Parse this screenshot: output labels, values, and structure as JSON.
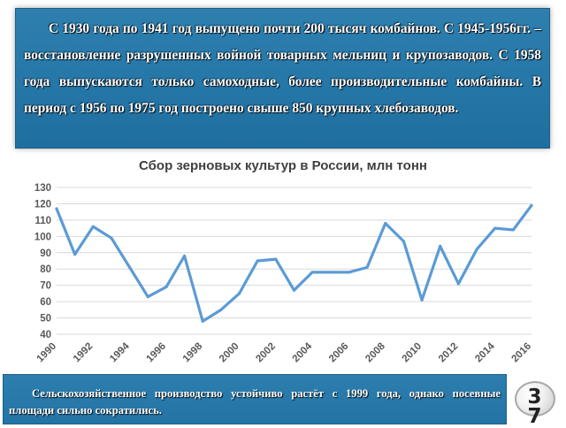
{
  "slide": {
    "top_text": "С 1930 года по 1941 год выпущено почти 200 тысяч комбайнов. С 1945-1956гг. – восстановление разрушенных войной товарных мельниц и крупозаводов. С 1958 года выпускаются только самоходные, более производительные комбайны. В период с 1956 по 1975 год построено свыше 850 крупных хлебозаводов.",
    "bottom_text": "Сельскохозяйственное производство устойчиво растёт с 1999 года, однако посевные площади сильно сократились.",
    "page_number": "37"
  },
  "colors": {
    "panel": "#2577a8",
    "line": "#5b9bd5",
    "grid": "#d9d9d9",
    "axis_text": "#595959"
  },
  "chart_data": {
    "type": "line",
    "title": "Сбор зерновых культур в России, млн тонн",
    "xlabel": "",
    "ylabel": "",
    "x": [
      1990,
      1991,
      1992,
      1993,
      1994,
      1995,
      1996,
      1997,
      1998,
      1999,
      2000,
      2001,
      2002,
      2003,
      2004,
      2005,
      2006,
      2007,
      2008,
      2009,
      2010,
      2011,
      2012,
      2013,
      2014,
      2015,
      2016
    ],
    "series": [
      {
        "values": [
          117,
          89,
          106,
          99,
          81,
          63,
          69,
          88,
          48,
          55,
          65,
          85,
          86,
          67,
          78,
          78,
          78,
          81,
          108,
          97,
          61,
          94,
          71,
          92,
          105,
          104,
          119
        ]
      }
    ],
    "x_tick_labels": [
      "1990",
      "1992",
      "1994",
      "1996",
      "1998",
      "2000",
      "2002",
      "2004",
      "2006",
      "2008",
      "2010",
      "2012",
      "2014",
      "2016"
    ],
    "y_tick_labels": [
      "40",
      "50",
      "60",
      "70",
      "80",
      "90",
      "100",
      "110",
      "120",
      "130"
    ],
    "ylim": [
      40,
      130
    ],
    "grid": true,
    "legend": "none"
  }
}
